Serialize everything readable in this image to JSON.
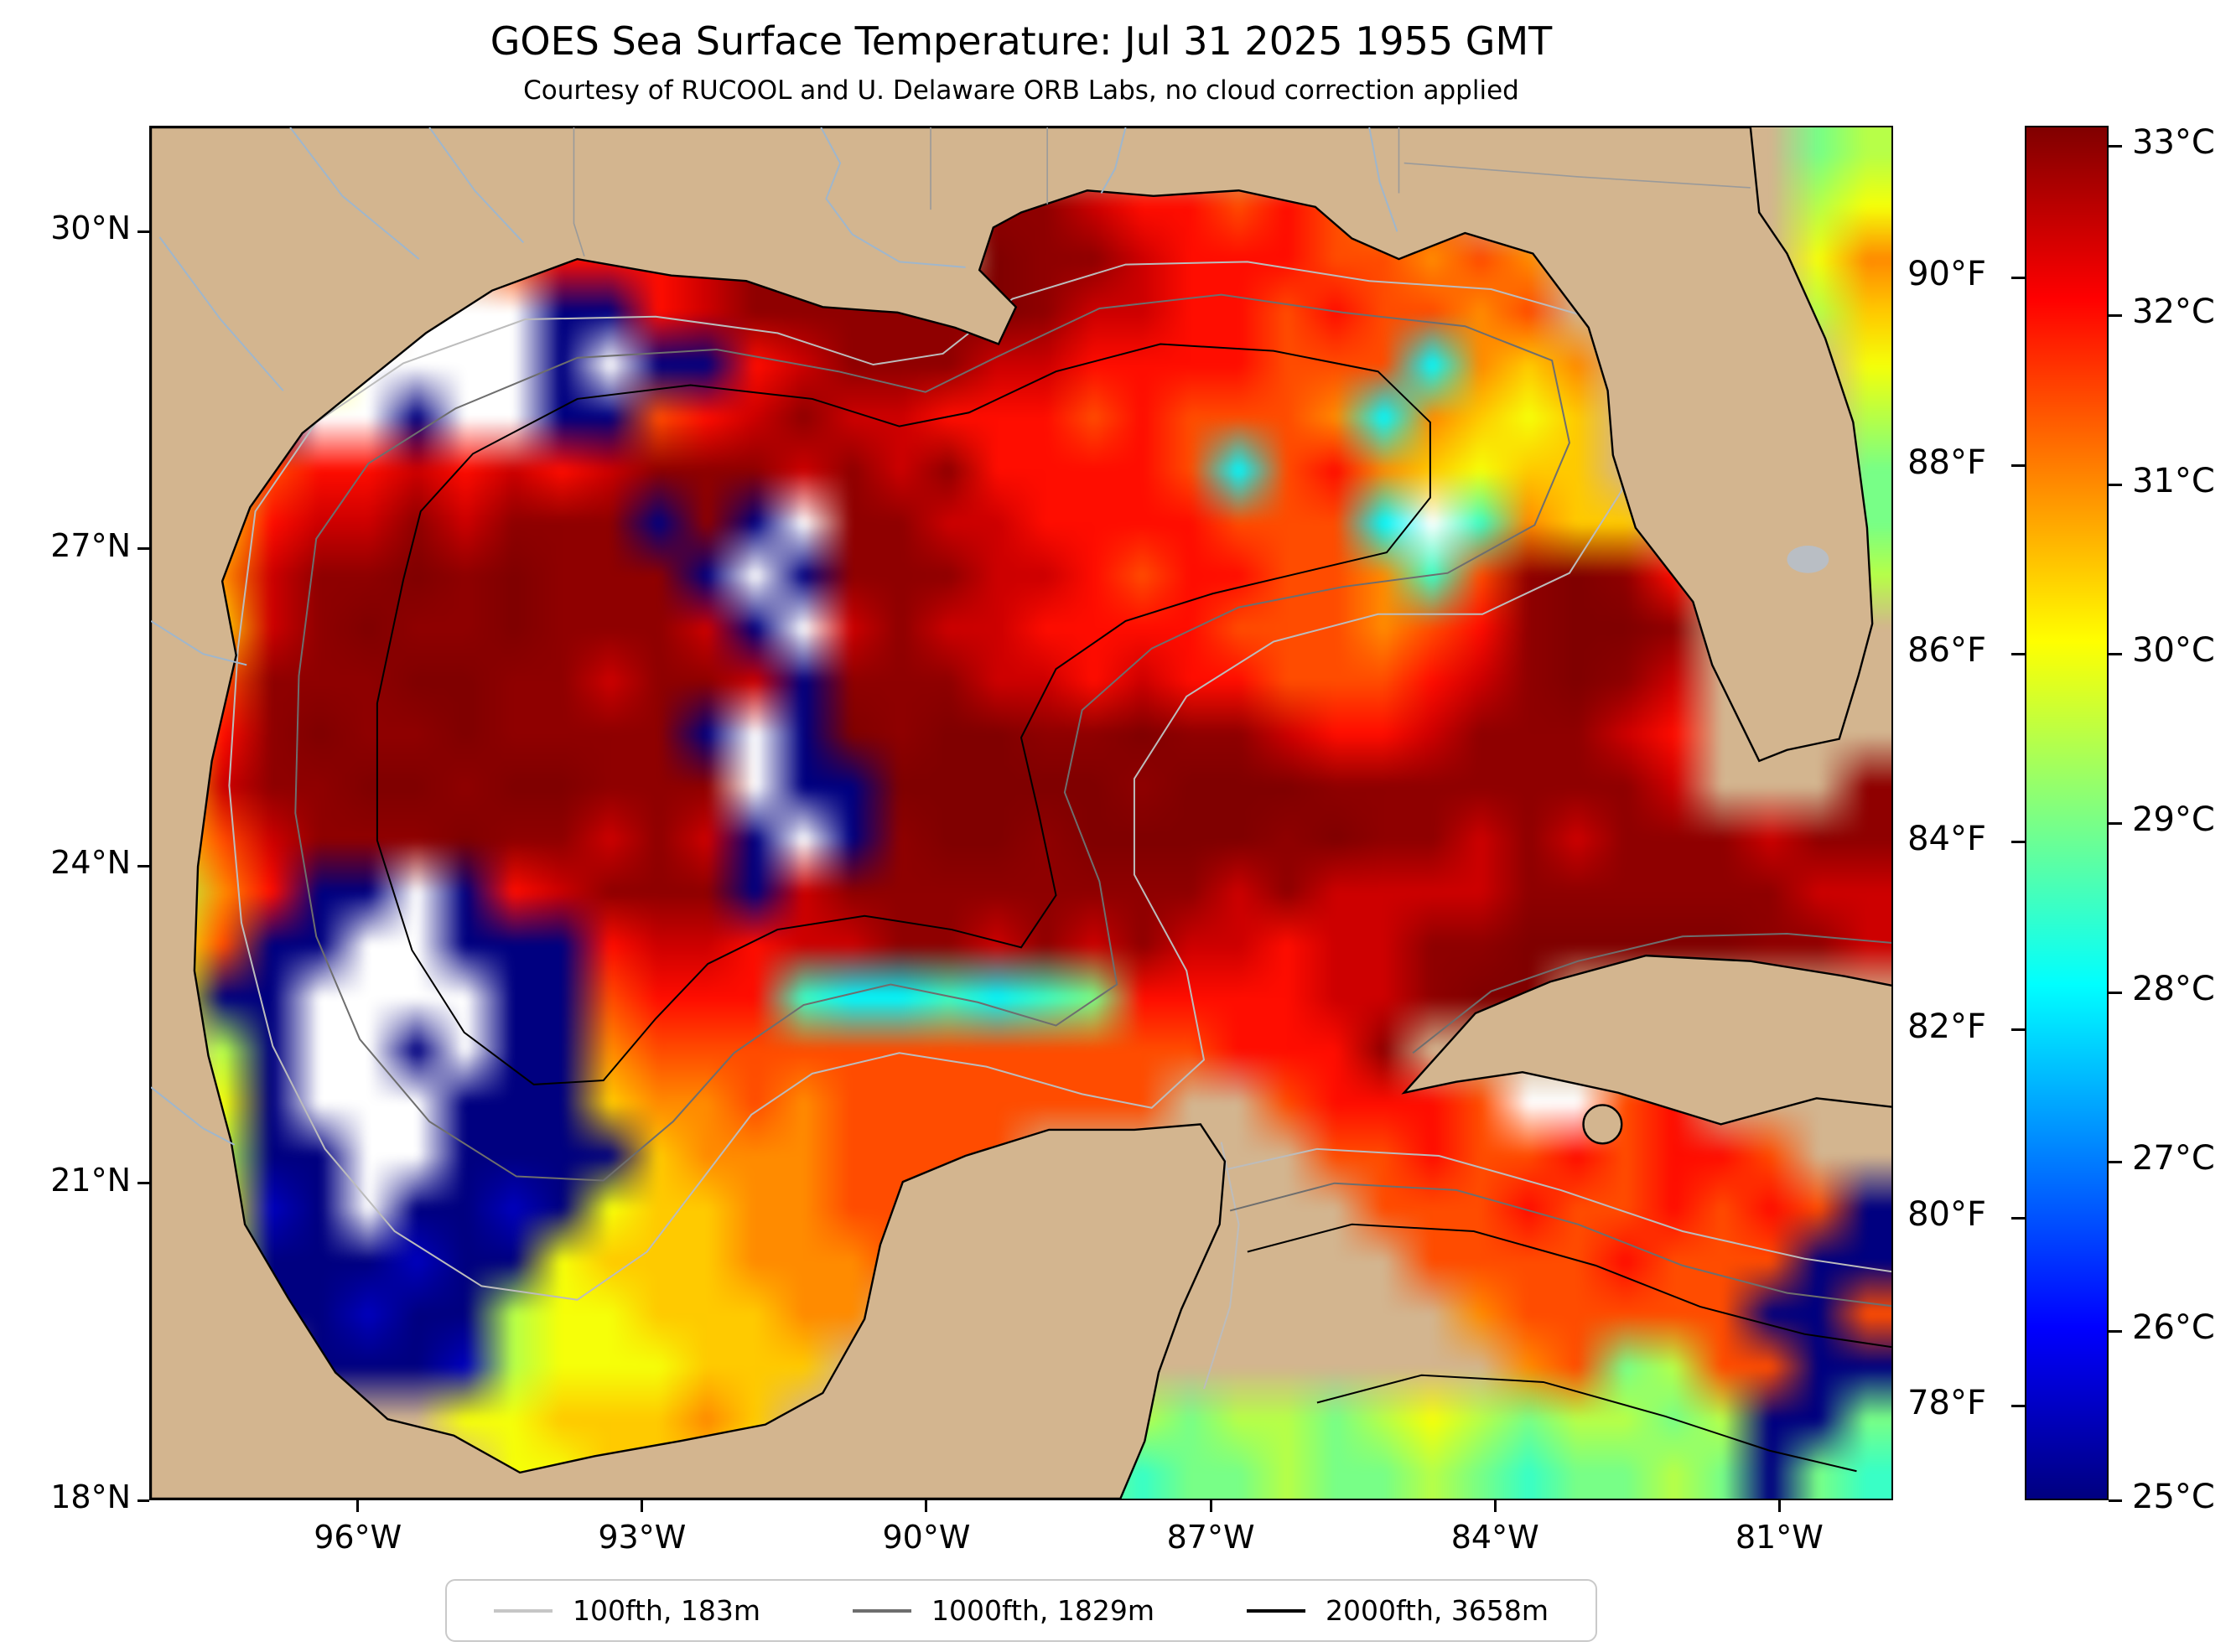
{
  "figure": {
    "title": "GOES Sea Surface Temperature: Jul 31 2025 1955 GMT",
    "subtitle": "Courtesy of RUCOOL and U. Delaware ORB Labs, no cloud correction applied"
  },
  "legend": {
    "items": [
      {
        "label": "100fth, 183m",
        "color": "#c6c6c6"
      },
      {
        "label": "1000fth, 1829m",
        "color": "#6e6e6e"
      },
      {
        "label": "2000fth, 3658m",
        "color": "#000000"
      }
    ]
  },
  "chart_data": {
    "type": "heatmap",
    "title": "GOES Sea Surface Temperature: Jul 31 2025 1955 GMT",
    "subtitle": "Courtesy of RUCOOL and U. Delaware ORB Labs, no cloud correction applied",
    "units": "°C",
    "value_range_c": [
      25.0,
      33.5
    ],
    "land_color": "#d3b58f",
    "cloud_color": "#ffffff",
    "colormap": "jet",
    "axes": {
      "lon_left": 98.2,
      "lon_right": 79.8,
      "lat_top": 31.0,
      "lat_bottom": 18.0,
      "lon_ticks": [
        {
          "value": 96,
          "label": "96°W"
        },
        {
          "value": 93,
          "label": "93°W"
        },
        {
          "value": 90,
          "label": "90°W"
        },
        {
          "value": 87,
          "label": "87°W"
        },
        {
          "value": 84,
          "label": "84°W"
        },
        {
          "value": 81,
          "label": "81°W"
        }
      ],
      "lat_ticks": [
        {
          "value": 30,
          "label": "30°N"
        },
        {
          "value": 27,
          "label": "27°N"
        },
        {
          "value": 24,
          "label": "24°N"
        },
        {
          "value": 21,
          "label": "21°N"
        },
        {
          "value": 18,
          "label": "18°N"
        }
      ]
    },
    "colorbar": {
      "top_c": 33.12,
      "bottom_c": 25.0,
      "celsius_ticks": [
        {
          "value": 33,
          "label": "33°C"
        },
        {
          "value": 32,
          "label": "32°C"
        },
        {
          "value": 31,
          "label": "31°C"
        },
        {
          "value": 30,
          "label": "30°C"
        },
        {
          "value": 29,
          "label": "29°C"
        },
        {
          "value": 28,
          "label": "28°C"
        },
        {
          "value": 27,
          "label": "27°C"
        },
        {
          "value": 26,
          "label": "26°C"
        },
        {
          "value": 25,
          "label": "25°C"
        }
      ],
      "fahrenheit_ticks": [
        {
          "value": 90,
          "label": "90°F"
        },
        {
          "value": 88,
          "label": "88°F"
        },
        {
          "value": 86,
          "label": "86°F"
        },
        {
          "value": 84,
          "label": "84°F"
        },
        {
          "value": 82,
          "label": "82°F"
        },
        {
          "value": 80,
          "label": "80°F"
        },
        {
          "value": 78,
          "label": "78°F"
        }
      ]
    },
    "grid": {
      "cols": 36,
      "rows": 26,
      "encoding": {
        "#": "land",
        "*": "cloud/no-data (white)",
        "a-r": "SST °C = 25 + 0.5 × letter index (a=25.0 … q=33.0, r=33.5)"
      },
      "cells": [
        "##############qrq#################ij",
        "##############qrrqqpoononmn#######jk",
        "#######nooopqqqr#rqqpooonnmnm#####km",
        "#####***aaopqqqqqrqppoononnmn#####jl",
        "###k****a*aaopqqqppoooonnngmlm#####k",
        "#ja**a**aanopqppooononnnmgmlkl#####j",
        "#inoopopopqqqpqpqoooongnomlkll#####i",
        "jloppqpqqqaqa*qqppoooonnng*hmll####i",
        "kmpqqrqrqqqa*aqqqpponoonnmhnqrqo###j",
        "klpqrqqrqqqpa*pqppoooonnnmnoqrrq####",
        "knqqqrrqqpqqpaqqqppopoonnnopqrqp####",
        "loqrqqrqqqqa*arqrrqqrqqpoopqqqpo####",
        "lpqqrrqrrqqq*aarrrrrqrrrqqqqqqqp###q",
        "lnpqqqrqqpqpa*aqrrqrrrrqrqqpqpqqqpqq",
        "jmoaa*aopqqqapqqqqqqqqpqppppqqqqqqpp",
        "knaa**aaaoppoppqqpqpqppoppqqrrrrrqqp",
        "kaa****aanooohgghghiooooppqrr#######",
        "#ja**a*aamnnnnnnnnnnnnoooq##########",
        "#ka***aaalmmnmnnnnnnn##nooon**no####",
        "#jaa**aaaalmmmnnnn######nnonnonoon##",
        "#kba*aabakllmmnnn########nnnonnonona",
        "#jaaabaaklllmmmn##########nnnnonnnaa",
        "#iaabaajkklllmm############mnnnnnaan",
        "###aaabjkkklll##############mnijnnaa",
        "######kklllml#######jijjijkjijjijaai",
        "#######kklllk######ihiijiijihiijiaih"
      ]
    },
    "contour_legend": [
      {
        "label": "100fth, 183m",
        "depth_m": 183
      },
      {
        "label": "1000fth, 1829m",
        "depth_m": 1829
      },
      {
        "label": "2000fth, 3658m",
        "depth_m": 3658
      }
    ]
  }
}
